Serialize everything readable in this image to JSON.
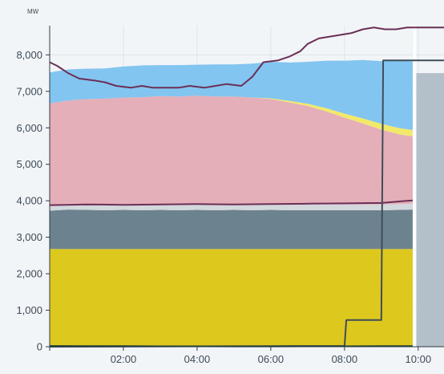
{
  "chart_data": {
    "type": "area",
    "unit": "MW",
    "ylim": [
      0,
      8800
    ],
    "y_ticks": [
      0,
      1000,
      2000,
      3000,
      4000,
      5000,
      6000,
      7000,
      8000
    ],
    "y_tick_labels": [
      "0",
      "1,000",
      "2,000",
      "3,000",
      "4,000",
      "5,000",
      "6,000",
      "7,000",
      "8,000"
    ],
    "xlim_hours": [
      0.0,
      10.7
    ],
    "x_ticks": [
      2,
      4,
      6,
      8,
      10
    ],
    "x_tick_labels": [
      "02:00",
      "04:00",
      "06:00",
      "08:00",
      "10:00"
    ],
    "grid": true,
    "legend": "none",
    "x": [
      0,
      0.5,
      1,
      1.5,
      2,
      2.5,
      3,
      3.5,
      4,
      4.5,
      5,
      5.5,
      6,
      6.5,
      7,
      7.5,
      8,
      8.5,
      9,
      9.5,
      9.85
    ],
    "series": [
      {
        "color": "#ddc81e",
        "values": [
          2680,
          2680,
          2680,
          2680,
          2680,
          2680,
          2680,
          2680,
          2680,
          2680,
          2680,
          2680,
          2680,
          2680,
          2680,
          2680,
          2680,
          2680,
          2680,
          2680,
          2680
        ]
      },
      {
        "color": "#6c838f",
        "values": [
          1050,
          1080,
          1070,
          1060,
          1070,
          1060,
          1070,
          1060,
          1070,
          1060,
          1070,
          1060,
          1070,
          1060,
          1060,
          1060,
          1060,
          1060,
          1060,
          1070,
          1080
        ]
      },
      {
        "color": "#d3d8dd",
        "values": [
          160,
          160,
          160,
          160,
          160,
          160,
          160,
          160,
          160,
          160,
          160,
          160,
          160,
          160,
          160,
          160,
          160,
          160,
          160,
          160,
          160
        ]
      },
      {
        "color": "#e4afb8",
        "values": [
          2780,
          2830,
          2880,
          2900,
          2920,
          2940,
          2960,
          2960,
          2970,
          2960,
          2950,
          2930,
          2880,
          2800,
          2700,
          2550,
          2380,
          2220,
          2050,
          1910,
          1850
        ]
      },
      {
        "color": "#f2e96a",
        "values": [
          0,
          0,
          0,
          0,
          0,
          0,
          0,
          0,
          0,
          0,
          0,
          0,
          20,
          40,
          60,
          90,
          110,
          140,
          160,
          170,
          170
        ]
      },
      {
        "color": "#82c5f0",
        "values": [
          850,
          850,
          830,
          830,
          850,
          870,
          850,
          860,
          850,
          880,
          880,
          930,
          1000,
          1050,
          1150,
          1300,
          1450,
          1600,
          1720,
          1850,
          1880
        ]
      }
    ],
    "lines": [
      {
        "color": "#6b2f56",
        "x": [
          0,
          0.2,
          0.5,
          0.8,
          1.2,
          1.5,
          1.8,
          2.2,
          2.5,
          2.8,
          3.2,
          3.5,
          3.8,
          4.2,
          4.5,
          4.8,
          5.2,
          5.5,
          5.8,
          6.2,
          6.5,
          6.8,
          7.0,
          7.3,
          7.6,
          7.9,
          8.2,
          8.5,
          8.8,
          9.1,
          9.4,
          9.7,
          10.0,
          10.7
        ],
        "values": [
          7800,
          7700,
          7500,
          7350,
          7300,
          7250,
          7150,
          7100,
          7150,
          7100,
          7100,
          7100,
          7150,
          7100,
          7150,
          7200,
          7150,
          7400,
          7800,
          7850,
          7950,
          8100,
          8300,
          8450,
          8500,
          8550,
          8600,
          8700,
          8750,
          8700,
          8700,
          8750,
          8750,
          8750
        ]
      },
      {
        "color": "#6b2f56",
        "x": [
          0,
          1,
          2,
          3,
          4,
          5,
          6,
          7,
          8,
          9,
          9.85
        ],
        "values": [
          3880,
          3900,
          3890,
          3900,
          3910,
          3900,
          3910,
          3920,
          3930,
          3940,
          4010
        ]
      },
      {
        "color": "#3f4d59",
        "x": [
          0,
          7.0,
          7.05,
          8.0,
          8.05,
          9.0,
          9.05,
          9.85,
          9.9,
          10.7
        ],
        "values": [
          0,
          20,
          20,
          20,
          730,
          730,
          7850,
          7850,
          7850,
          7850
        ]
      },
      {
        "color": "#1f3f3a",
        "x": [
          0,
          1,
          2,
          3,
          4,
          5,
          6,
          7,
          8,
          9,
          9.85
        ],
        "values": [
          20,
          18,
          15,
          12,
          10,
          8,
          8,
          10,
          12,
          15,
          18
        ]
      }
    ],
    "forecast_bar": {
      "color": "#b4c0c9",
      "x_start": 9.95,
      "x_end": 10.7,
      "value": 7500
    },
    "now_marker_x": 9.9
  }
}
